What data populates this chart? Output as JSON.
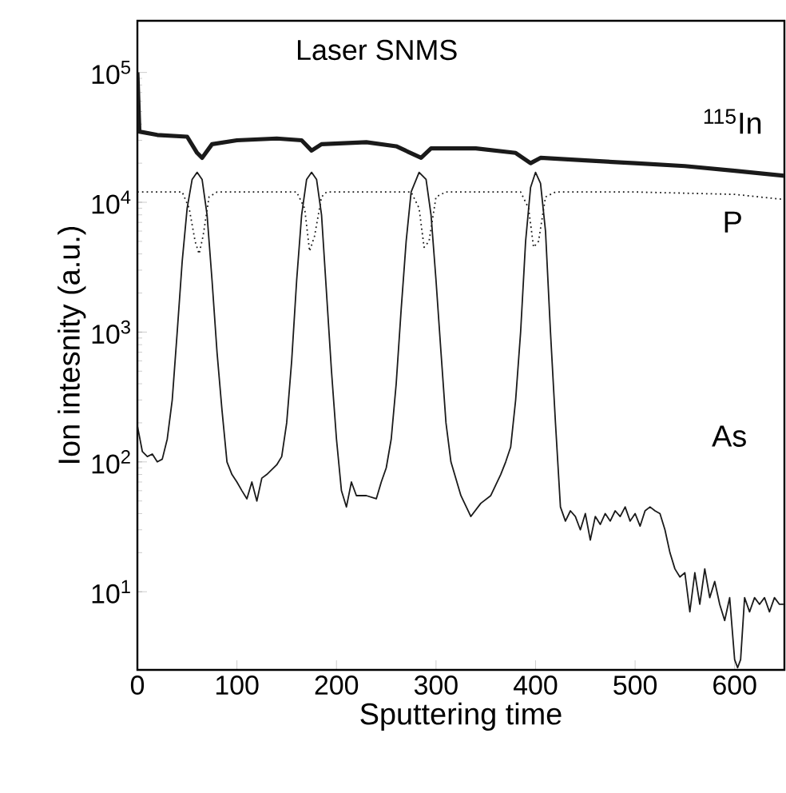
{
  "chart_data": {
    "type": "line",
    "xlabel": "Sputtering time",
    "ylabel": "Ion intesnity (a.u.)",
    "annotations": [
      "Laser SNMS"
    ],
    "xlim": [
      0,
      650
    ],
    "xticks": [
      0,
      100,
      200,
      300,
      400,
      500,
      600
    ],
    "ylim": [
      2.5,
      250000
    ],
    "yticks": [
      {
        "value": 10,
        "label": "10$^{1}$"
      },
      {
        "value": 100,
        "label": "10$^{2}$"
      },
      {
        "value": 1000,
        "label": "10$^{3}$"
      },
      {
        "value": 10000,
        "label": "10$^{4}$"
      },
      {
        "value": 100000,
        "label": "10$^{5}$"
      }
    ],
    "log": "y",
    "grid": false,
    "legend": false,
    "marker": "none",
    "series": [
      {
        "name": "$^{115}$In",
        "color": "#1a1a1a",
        "line_style": "solid",
        "x": [
          0,
          2,
          20,
          50,
          60,
          65,
          75,
          100,
          140,
          165,
          175,
          185,
          230,
          260,
          285,
          295,
          340,
          380,
          395,
          405,
          450,
          500,
          550,
          600,
          650
        ],
        "values": [
          100000,
          35000,
          33000,
          32000,
          24000,
          22000,
          28000,
          30000,
          31000,
          30000,
          25000,
          28000,
          29000,
          27000,
          22000,
          26000,
          26000,
          24000,
          20000,
          22000,
          21000,
          20000,
          19000,
          17500,
          16000
        ]
      },
      {
        "name": "P",
        "color": "#1a1a1a",
        "line_style": "dotted",
        "x": [
          0,
          45,
          52,
          58,
          62,
          66,
          72,
          80,
          160,
          168,
          173,
          178,
          185,
          190,
          275,
          283,
          288,
          293,
          300,
          310,
          385,
          393,
          398,
          403,
          410,
          420,
          500,
          600,
          650
        ],
        "values": [
          12000,
          12000,
          9000,
          5000,
          4000,
          5500,
          11000,
          12000,
          12000,
          9000,
          4200,
          5500,
          11000,
          12000,
          12000,
          9000,
          4500,
          5000,
          11000,
          12000,
          12000,
          9000,
          4500,
          5000,
          11000,
          12000,
          12000,
          11500,
          10500
        ]
      },
      {
        "name": "As",
        "color": "#1a1a1a",
        "line_style": "solid",
        "x": [
          0,
          5,
          10,
          15,
          20,
          25,
          30,
          35,
          40,
          45,
          50,
          55,
          60,
          65,
          70,
          75,
          80,
          85,
          90,
          95,
          100,
          105,
          110,
          115,
          120,
          125,
          130,
          140,
          145,
          150,
          155,
          160,
          165,
          170,
          175,
          180,
          185,
          190,
          195,
          200,
          205,
          210,
          215,
          220,
          230,
          240,
          245,
          250,
          255,
          260,
          265,
          270,
          275,
          283,
          290,
          295,
          300,
          305,
          310,
          315,
          325,
          335,
          345,
          355,
          365,
          370,
          375,
          380,
          385,
          390,
          395,
          400,
          405,
          410,
          415,
          420,
          425,
          430,
          435,
          440,
          445,
          450,
          455,
          460,
          465,
          470,
          475,
          480,
          485,
          490,
          495,
          500,
          505,
          510,
          515,
          520,
          525,
          530,
          535,
          540,
          545,
          550,
          555,
          560,
          565,
          570,
          575,
          580,
          585,
          590,
          595,
          600,
          603,
          606,
          610,
          615,
          620,
          625,
          630,
          635,
          640,
          645,
          650
        ],
        "values": [
          190,
          120,
          110,
          115,
          100,
          105,
          150,
          300,
          1000,
          3500,
          9000,
          15000,
          17000,
          15000,
          8000,
          2500,
          700,
          250,
          100,
          80,
          70,
          60,
          52,
          70,
          50,
          75,
          80,
          95,
          110,
          200,
          600,
          2500,
          8000,
          15000,
          17000,
          15000,
          8000,
          2000,
          500,
          150,
          60,
          45,
          70,
          55,
          55,
          52,
          70,
          90,
          150,
          400,
          1500,
          5000,
          12000,
          17000,
          15000,
          8000,
          2500,
          700,
          200,
          100,
          55,
          38,
          48,
          55,
          80,
          100,
          130,
          300,
          1000,
          5000,
          13000,
          17000,
          14000,
          6000,
          1000,
          200,
          45,
          35,
          42,
          38,
          30,
          40,
          25,
          38,
          33,
          40,
          35,
          42,
          38,
          45,
          35,
          40,
          32,
          42,
          45,
          42,
          40,
          30,
          20,
          15,
          13,
          14,
          7,
          14,
          8,
          15,
          9,
          12,
          8,
          6,
          9,
          3,
          2.6,
          3,
          9,
          7,
          9,
          8,
          9,
          7,
          9,
          8,
          8
        ]
      }
    ]
  }
}
